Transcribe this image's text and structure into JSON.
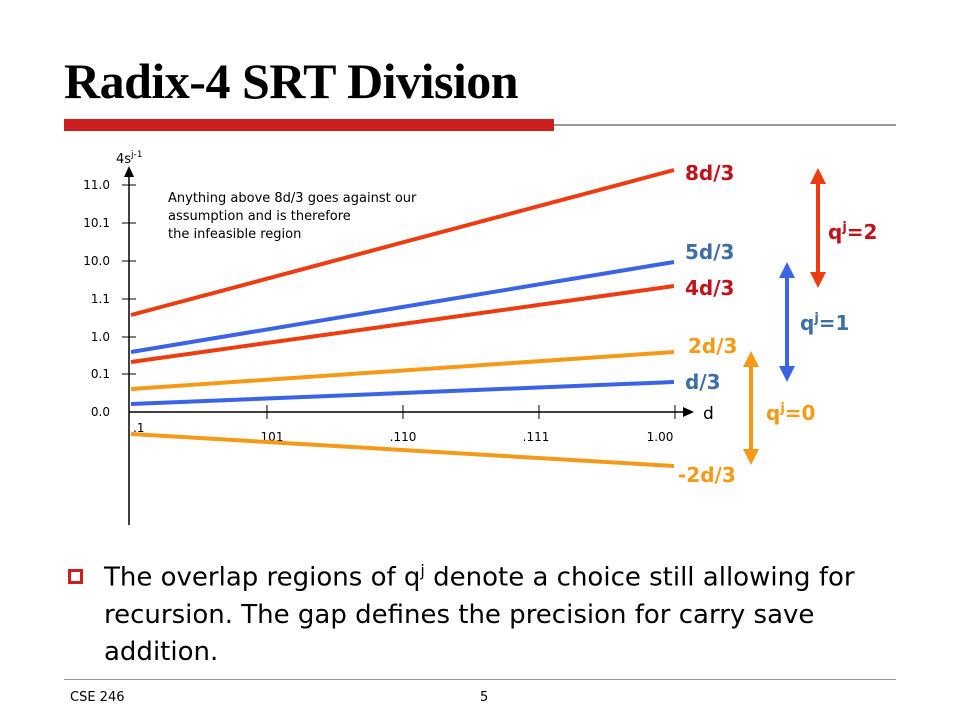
{
  "slide": {
    "title": "Radix-4 SRT Division",
    "footer_left": "CSE 246",
    "footer_right": "5",
    "bullet": {
      "text_before": "The overlap regions of q",
      "text_sup": "j",
      "text_after": " denote a choice still allowing for recursion. The gap defines the precision for carry save addition."
    }
  },
  "colors": {
    "red": "#ee3b10",
    "blue": "#3a63e6",
    "orange": "#f59a16",
    "dark_red": "#c0121a",
    "steel_blue": "#3d6ea8",
    "title_rule": "#cc1f1f"
  },
  "diagram": {
    "y_axis": {
      "label": "4s",
      "label_sup": "j-1",
      "ticks": [
        "11.0",
        "10.1",
        "10.0",
        "1.1",
        "1.0",
        "0.1",
        "0.0"
      ]
    },
    "x_axis": {
      "label": "d",
      "ticks": [
        ".1",
        "101",
        ".110",
        ".111",
        "1.00"
      ]
    },
    "note": "Anything above 8d/3 goes against our assumption and is therefore the infeasible region",
    "lines": [
      {
        "label": "8d/3",
        "color_key": "red"
      },
      {
        "label": "5d/3",
        "color_key": "blue"
      },
      {
        "label": "4d/3",
        "color_key": "red"
      },
      {
        "label": "2d/3",
        "color_key": "orange"
      },
      {
        "label": "d/3",
        "color_key": "blue"
      },
      {
        "label": "-2d/3",
        "color_key": "orange"
      }
    ],
    "regions": [
      {
        "label": "q",
        "sup": "j",
        "suffix": "=2"
      },
      {
        "label": "q",
        "sup": "j",
        "suffix": "=1"
      },
      {
        "label": "q",
        "sup": "j",
        "suffix": "=0"
      }
    ]
  }
}
